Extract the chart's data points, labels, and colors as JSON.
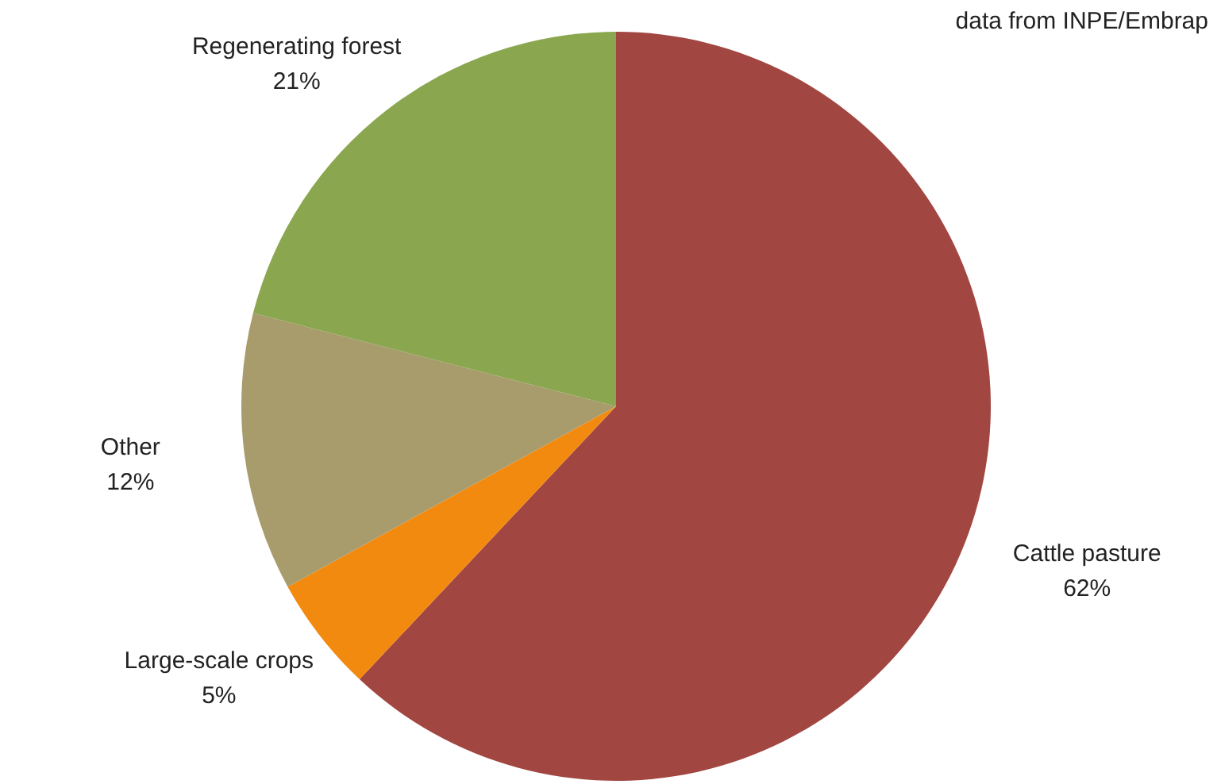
{
  "chart_data": {
    "type": "pie",
    "categories": [
      "Cattle pasture",
      "Large-scale crops",
      "Other",
      "Regenerating forest"
    ],
    "values": [
      62,
      5,
      12,
      21
    ],
    "colors": [
      "#a24641",
      "#f38a10",
      "#a89c6c",
      "#8aa64f"
    ],
    "annotations": [
      "data from INPE/Embrap"
    ],
    "value_labels": [
      "62%",
      "5%",
      "12%",
      "21%"
    ]
  }
}
